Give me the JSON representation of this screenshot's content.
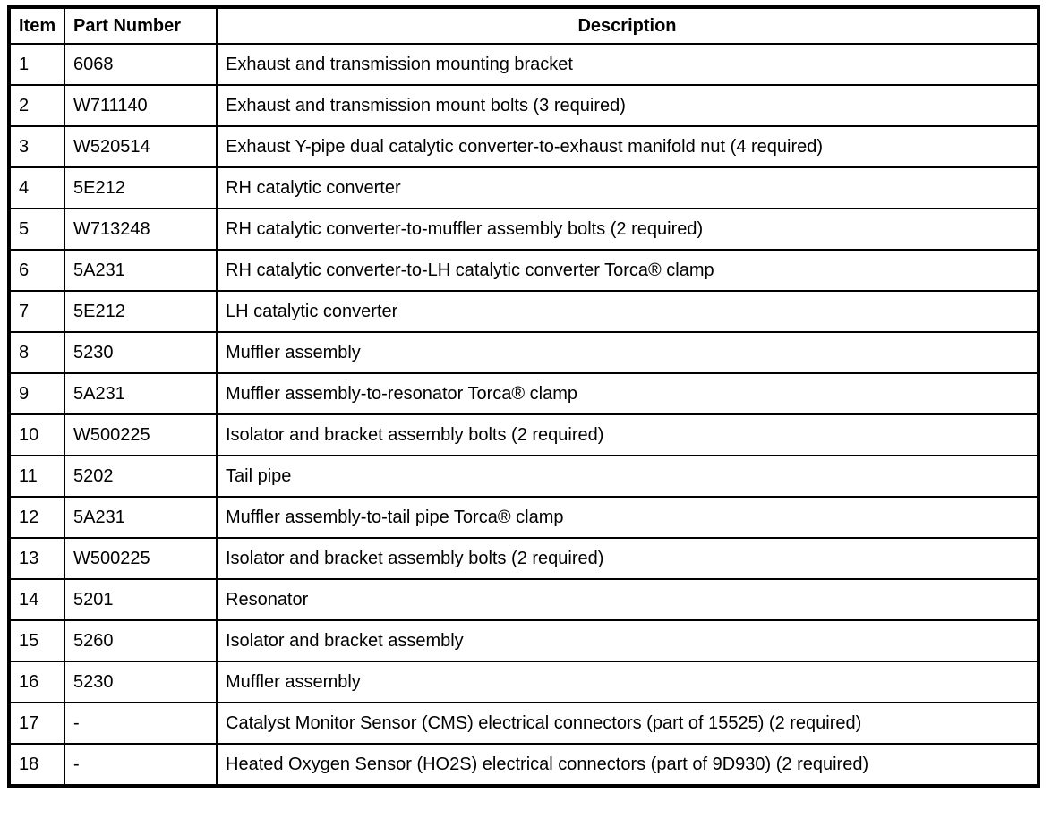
{
  "table": {
    "columns": [
      {
        "key": "item",
        "label": "Item"
      },
      {
        "key": "part_number",
        "label": "Part Number"
      },
      {
        "key": "description",
        "label": "Description"
      }
    ],
    "rows": [
      {
        "item": "1",
        "part_number": "6068",
        "description": "Exhaust and transmission mounting bracket"
      },
      {
        "item": "2",
        "part_number": "W711140",
        "description": "Exhaust and transmission mount bolts (3 required)"
      },
      {
        "item": "3",
        "part_number": "W520514",
        "description": "Exhaust Y-pipe dual catalytic converter-to-exhaust manifold nut (4 required)"
      },
      {
        "item": "4",
        "part_number": "5E212",
        "description": "RH catalytic converter"
      },
      {
        "item": "5",
        "part_number": "W713248",
        "description": "RH catalytic converter-to-muffler assembly bolts (2 required)"
      },
      {
        "item": "6",
        "part_number": "5A231",
        "description": "RH catalytic converter-to-LH catalytic converter Torca® clamp"
      },
      {
        "item": "7",
        "part_number": "5E212",
        "description": "LH catalytic converter"
      },
      {
        "item": "8",
        "part_number": "5230",
        "description": "Muffler assembly"
      },
      {
        "item": "9",
        "part_number": "5A231",
        "description": "Muffler assembly-to-resonator Torca® clamp"
      },
      {
        "item": "10",
        "part_number": "W500225",
        "description": "Isolator and bracket assembly bolts (2 required)"
      },
      {
        "item": "11",
        "part_number": "5202",
        "description": "Tail pipe"
      },
      {
        "item": "12",
        "part_number": "5A231",
        "description": "Muffler assembly-to-tail pipe Torca® clamp"
      },
      {
        "item": "13",
        "part_number": "W500225",
        "description": "Isolator and bracket assembly bolts (2 required)"
      },
      {
        "item": "14",
        "part_number": "5201",
        "description": "Resonator"
      },
      {
        "item": "15",
        "part_number": "5260",
        "description": "Isolator and bracket assembly"
      },
      {
        "item": "16",
        "part_number": "5230",
        "description": "Muffler assembly"
      },
      {
        "item": "17",
        "part_number": "-",
        "description": "Catalyst Monitor Sensor (CMS) electrical connectors (part of 15525) (2 required)"
      },
      {
        "item": "18",
        "part_number": "-",
        "description": "Heated Oxygen Sensor (HO2S) electrical connectors (part of 9D930) (2 required)"
      }
    ]
  },
  "colors": {
    "border": "#000000",
    "background": "#ffffff",
    "text": "#000000"
  }
}
